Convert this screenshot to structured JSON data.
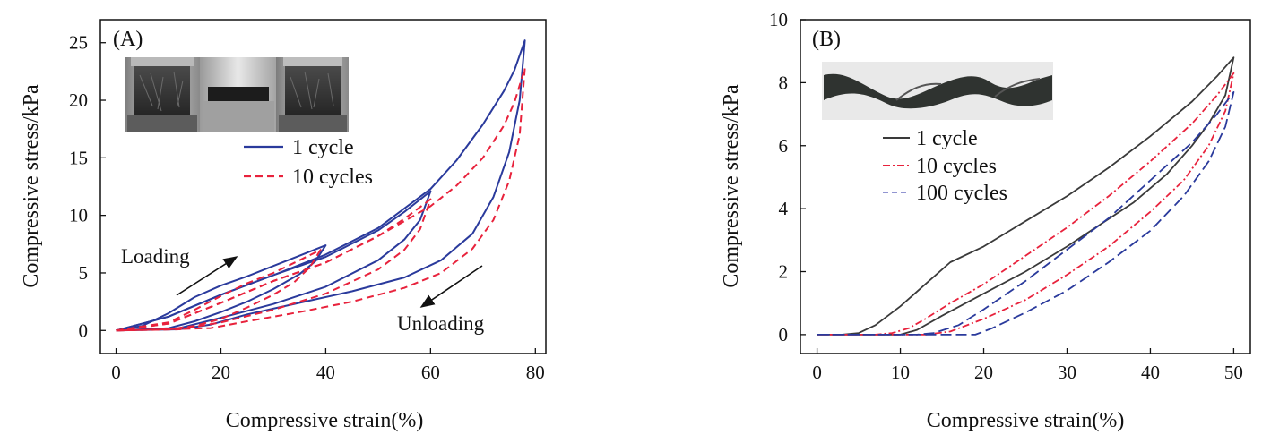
{
  "chart_data": [
    {
      "type": "line",
      "panel_label": "(A)",
      "xlabel": "Compressive strain(%)",
      "ylabel": "Compressive stress/kPa",
      "xlim": [
        -3,
        82
      ],
      "ylim": [
        -2,
        27
      ],
      "xticks": [
        0,
        20,
        40,
        60,
        80
      ],
      "yticks": [
        0,
        5,
        10,
        15,
        20,
        25
      ],
      "grid": false,
      "legend_position": "upper-middle",
      "inset": "photo strip of a foam sample under compression (three frames)",
      "annotations": [
        {
          "text": "Loading",
          "arrow": "up-right"
        },
        {
          "text": "Unloading",
          "arrow": "down-left"
        }
      ],
      "series": [
        {
          "name": "1 cycle",
          "color": "#2a3a9c",
          "dash": "solid",
          "loops": [
            {
              "max_strain": 40,
              "loading": [
                [
                  0,
                  0
                ],
                [
                  5,
                  0.4
                ],
                [
                  10,
                  1.5
                ],
                [
                  15,
                  2.9
                ],
                [
                  20,
                  3.9
                ],
                [
                  25,
                  4.7
                ],
                [
                  30,
                  5.6
                ],
                [
                  35,
                  6.5
                ],
                [
                  40,
                  7.4
                ]
              ],
              "unloading": [
                [
                  40,
                  7.4
                ],
                [
                  38,
                  6.0
                ],
                [
                  35,
                  4.9
                ],
                [
                  30,
                  3.6
                ],
                [
                  25,
                  2.5
                ],
                [
                  20,
                  1.6
                ],
                [
                  15,
                  0.8
                ],
                [
                  10,
                  0.2
                ],
                [
                  0,
                  0
                ]
              ]
            },
            {
              "max_strain": 60,
              "loading": [
                [
                  0,
                  0
                ],
                [
                  10,
                  1.2
                ],
                [
                  20,
                  3.1
                ],
                [
                  30,
                  4.8
                ],
                [
                  40,
                  6.4
                ],
                [
                  50,
                  8.7
                ],
                [
                  55,
                  10.3
                ],
                [
                  60,
                  12.1
                ]
              ],
              "unloading": [
                [
                  60,
                  12.1
                ],
                [
                  58,
                  9.6
                ],
                [
                  55,
                  7.9
                ],
                [
                  50,
                  6.1
                ],
                [
                  40,
                  3.8
                ],
                [
                  30,
                  2.3
                ],
                [
                  20,
                  1.1
                ],
                [
                  12,
                  0.2
                ],
                [
                  0,
                  0
                ]
              ]
            },
            {
              "max_strain": 78,
              "loading": [
                [
                  0,
                  0
                ],
                [
                  10,
                  1.2
                ],
                [
                  20,
                  3.1
                ],
                [
                  30,
                  4.8
                ],
                [
                  40,
                  6.6
                ],
                [
                  50,
                  8.9
                ],
                [
                  60,
                  12.3
                ],
                [
                  65,
                  14.8
                ],
                [
                  70,
                  17.9
                ],
                [
                  74,
                  20.8
                ],
                [
                  76,
                  22.6
                ],
                [
                  78,
                  25.2
                ]
              ],
              "unloading": [
                [
                  78,
                  25.2
                ],
                [
                  77,
                  20
                ],
                [
                  75,
                  15.5
                ],
                [
                  72,
                  11.6
                ],
                [
                  68,
                  8.4
                ],
                [
                  62,
                  6.1
                ],
                [
                  55,
                  4.6
                ],
                [
                  45,
                  3.4
                ],
                [
                  35,
                  2.4
                ],
                [
                  25,
                  1.4
                ],
                [
                  18,
                  0.5
                ],
                [
                  12,
                  0.1
                ],
                [
                  0,
                  0
                ]
              ]
            }
          ]
        },
        {
          "name": "10 cycles",
          "color": "#e8223c",
          "dash": "dashed",
          "loops": [
            {
              "max_strain": 39,
              "loading": [
                [
                  0,
                  0
                ],
                [
                  10,
                  0.7
                ],
                [
                  15,
                  1.8
                ],
                [
                  20,
                  3.0
                ],
                [
                  25,
                  4.1
                ],
                [
                  30,
                  5.0
                ],
                [
                  35,
                  6.1
                ],
                [
                  39,
                  7.0
                ]
              ],
              "unloading": [
                [
                  39,
                  7.0
                ],
                [
                  37,
                  5.5
                ],
                [
                  34,
                  4.2
                ],
                [
                  30,
                  3.1
                ],
                [
                  25,
                  2.0
                ],
                [
                  20,
                  1.0
                ],
                [
                  15,
                  0.4
                ],
                [
                  10,
                  0.1
                ],
                [
                  0,
                  0
                ]
              ]
            },
            {
              "max_strain": 60,
              "loading": [
                [
                  0,
                  0
                ],
                [
                  10,
                  0.6
                ],
                [
                  20,
                  2.4
                ],
                [
                  30,
                  4.3
                ],
                [
                  40,
                  5.9
                ],
                [
                  50,
                  8.2
                ],
                [
                  55,
                  9.7
                ],
                [
                  60,
                  11.4
                ]
              ],
              "unloading": [
                [
                  60,
                  11.4
                ],
                [
                  58,
                  8.8
                ],
                [
                  55,
                  7.0
                ],
                [
                  50,
                  5.3
                ],
                [
                  40,
                  3.2
                ],
                [
                  30,
                  1.8
                ],
                [
                  20,
                  0.7
                ],
                [
                  12,
                  0.1
                ],
                [
                  0,
                  0
                ]
              ]
            },
            {
              "max_strain": 78,
              "loading": [
                [
                  0,
                  0
                ],
                [
                  10,
                  0.6
                ],
                [
                  20,
                  2.4
                ],
                [
                  30,
                  4.3
                ],
                [
                  40,
                  5.9
                ],
                [
                  50,
                  8.2
                ],
                [
                  60,
                  10.8
                ],
                [
                  65,
                  12.6
                ],
                [
                  70,
                  15.0
                ],
                [
                  74,
                  17.8
                ],
                [
                  76,
                  19.8
                ],
                [
                  78,
                  22.8
                ]
              ],
              "unloading": [
                [
                  78,
                  22.8
                ],
                [
                  77,
                  17
                ],
                [
                  75,
                  13
                ],
                [
                  72,
                  9.6
                ],
                [
                  68,
                  7.1
                ],
                [
                  62,
                  5.0
                ],
                [
                  55,
                  3.7
                ],
                [
                  45,
                  2.5
                ],
                [
                  35,
                  1.6
                ],
                [
                  25,
                  0.8
                ],
                [
                  18,
                  0.2
                ],
                [
                  0,
                  0
                ]
              ]
            }
          ]
        }
      ]
    },
    {
      "type": "line",
      "panel_label": "(B)",
      "xlabel": "Compressive strain(%)",
      "ylabel": "Compressive stress/kPa",
      "xlim": [
        -2,
        52
      ],
      "ylim": [
        -0.6,
        10
      ],
      "xticks": [
        0,
        10,
        20,
        30,
        40,
        50
      ],
      "yticks": [
        0,
        2,
        4,
        6,
        8,
        10
      ],
      "grid": false,
      "legend_position": "upper-middle",
      "inset": "photo of a twisted dark foam strip",
      "series": [
        {
          "name": "1 cycle",
          "color": "#3a3a3a",
          "dash": "solid",
          "loading": [
            [
              0,
              0
            ],
            [
              3,
              0
            ],
            [
              5,
              0.05
            ],
            [
              7,
              0.3
            ],
            [
              10,
              0.9
            ],
            [
              13,
              1.6
            ],
            [
              16,
              2.3
            ],
            [
              20,
              2.8
            ],
            [
              25,
              3.6
            ],
            [
              30,
              4.4
            ],
            [
              35,
              5.3
            ],
            [
              40,
              6.3
            ],
            [
              45,
              7.4
            ],
            [
              48,
              8.2
            ],
            [
              50,
              8.8
            ]
          ],
          "unloading": [
            [
              50,
              8.8
            ],
            [
              49,
              7.6
            ],
            [
              47,
              6.7
            ],
            [
              45,
              6.0
            ],
            [
              42,
              5.1
            ],
            [
              38,
              4.2
            ],
            [
              34,
              3.5
            ],
            [
              30,
              2.8
            ],
            [
              25,
              2.0
            ],
            [
              20,
              1.3
            ],
            [
              15,
              0.6
            ],
            [
              12,
              0.15
            ],
            [
              10,
              0
            ],
            [
              0,
              0
            ]
          ]
        },
        {
          "name": "10 cycles",
          "color": "#e8223c",
          "dash": "dashdot",
          "loading": [
            [
              0,
              0
            ],
            [
              7,
              0
            ],
            [
              9,
              0.05
            ],
            [
              11,
              0.2
            ],
            [
              13,
              0.5
            ],
            [
              16,
              1.0
            ],
            [
              20,
              1.6
            ],
            [
              25,
              2.5
            ],
            [
              30,
              3.4
            ],
            [
              35,
              4.4
            ],
            [
              40,
              5.5
            ],
            [
              45,
              6.7
            ],
            [
              48,
              7.6
            ],
            [
              50,
              8.3
            ]
          ],
          "unloading": [
            [
              50,
              8.3
            ],
            [
              49,
              7.1
            ],
            [
              47,
              6.0
            ],
            [
              44,
              4.9
            ],
            [
              40,
              3.9
            ],
            [
              35,
              2.8
            ],
            [
              30,
              1.9
            ],
            [
              25,
              1.1
            ],
            [
              20,
              0.5
            ],
            [
              16,
              0.1
            ],
            [
              13,
              0
            ],
            [
              0,
              0
            ]
          ]
        },
        {
          "name": "100 cycles",
          "color": "#2a3a9c",
          "dash": "longdash",
          "loading": [
            [
              0,
              0
            ],
            [
              12,
              0
            ],
            [
              14,
              0.05
            ],
            [
              17,
              0.3
            ],
            [
              20,
              0.8
            ],
            [
              25,
              1.7
            ],
            [
              30,
              2.7
            ],
            [
              35,
              3.7
            ],
            [
              40,
              4.9
            ],
            [
              45,
              6.1
            ],
            [
              48,
              7.0
            ],
            [
              50,
              7.7
            ]
          ],
          "unloading": [
            [
              50,
              7.7
            ],
            [
              49,
              6.6
            ],
            [
              47,
              5.5
            ],
            [
              44,
              4.4
            ],
            [
              40,
              3.3
            ],
            [
              35,
              2.3
            ],
            [
              30,
              1.4
            ],
            [
              25,
              0.7
            ],
            [
              21,
              0.2
            ],
            [
              19,
              0
            ],
            [
              0,
              0
            ]
          ]
        }
      ]
    }
  ]
}
